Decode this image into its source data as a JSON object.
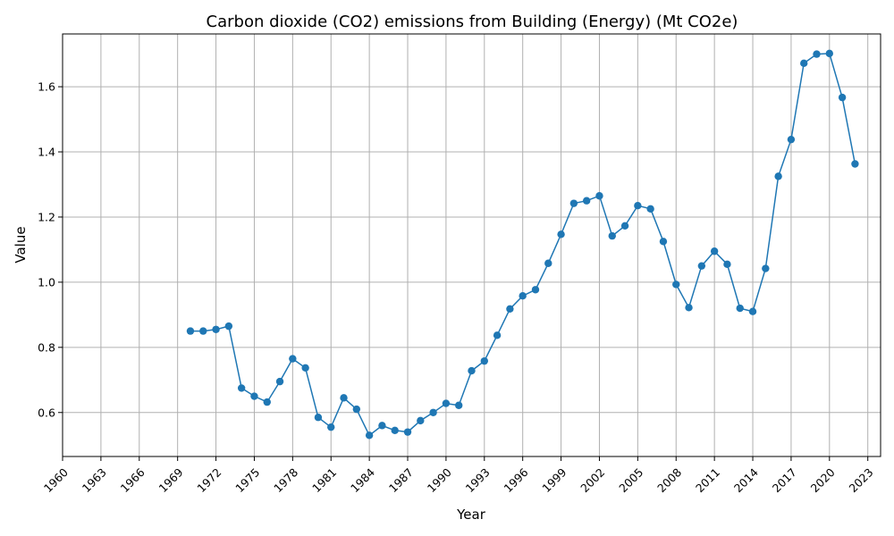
{
  "chart_data": {
    "type": "line",
    "title": "Carbon dioxide (CO2) emissions from Building (Energy) (Mt CO2e)",
    "xlabel": "Year",
    "ylabel": "Value",
    "xlim": [
      1960,
      2024
    ],
    "ylim": [
      0.465,
      1.762
    ],
    "grid": true,
    "color": "#1f77b4",
    "x_ticks": [
      1960,
      1963,
      1966,
      1969,
      1972,
      1975,
      1978,
      1981,
      1984,
      1987,
      1990,
      1993,
      1996,
      1999,
      2002,
      2005,
      2008,
      2011,
      2014,
      2017,
      2020,
      2023
    ],
    "y_ticks": [
      0.6,
      0.8,
      1.0,
      1.2,
      1.4,
      1.6
    ],
    "y_tick_labels": [
      "0.6",
      "0.8",
      "1.0",
      "1.2",
      "1.4",
      "1.6"
    ],
    "x": [
      1970,
      1971,
      1972,
      1973,
      1974,
      1975,
      1976,
      1977,
      1978,
      1979,
      1980,
      1981,
      1982,
      1983,
      1984,
      1985,
      1986,
      1987,
      1988,
      1989,
      1990,
      1991,
      1992,
      1993,
      1994,
      1995,
      1996,
      1997,
      1998,
      1999,
      2000,
      2001,
      2002,
      2003,
      2004,
      2005,
      2006,
      2007,
      2008,
      2009,
      2010,
      2011,
      2012,
      2013,
      2014,
      2015,
      2016,
      2017,
      2018,
      2019,
      2020,
      2021,
      2022
    ],
    "y": [
      0.85,
      0.85,
      0.855,
      0.865,
      0.675,
      0.65,
      0.632,
      0.695,
      0.765,
      0.737,
      0.585,
      0.555,
      0.645,
      0.61,
      0.53,
      0.56,
      0.545,
      0.54,
      0.575,
      0.6,
      0.628,
      0.622,
      0.728,
      0.758,
      0.837,
      0.918,
      0.958,
      0.977,
      1.058,
      1.147,
      1.242,
      1.25,
      1.265,
      1.142,
      1.173,
      1.235,
      1.225,
      1.125,
      0.993,
      0.922,
      1.05,
      1.095,
      1.055,
      0.92,
      0.91,
      1.042,
      1.325,
      1.438,
      1.672,
      1.7,
      1.702,
      1.567,
      1.363
    ]
  }
}
